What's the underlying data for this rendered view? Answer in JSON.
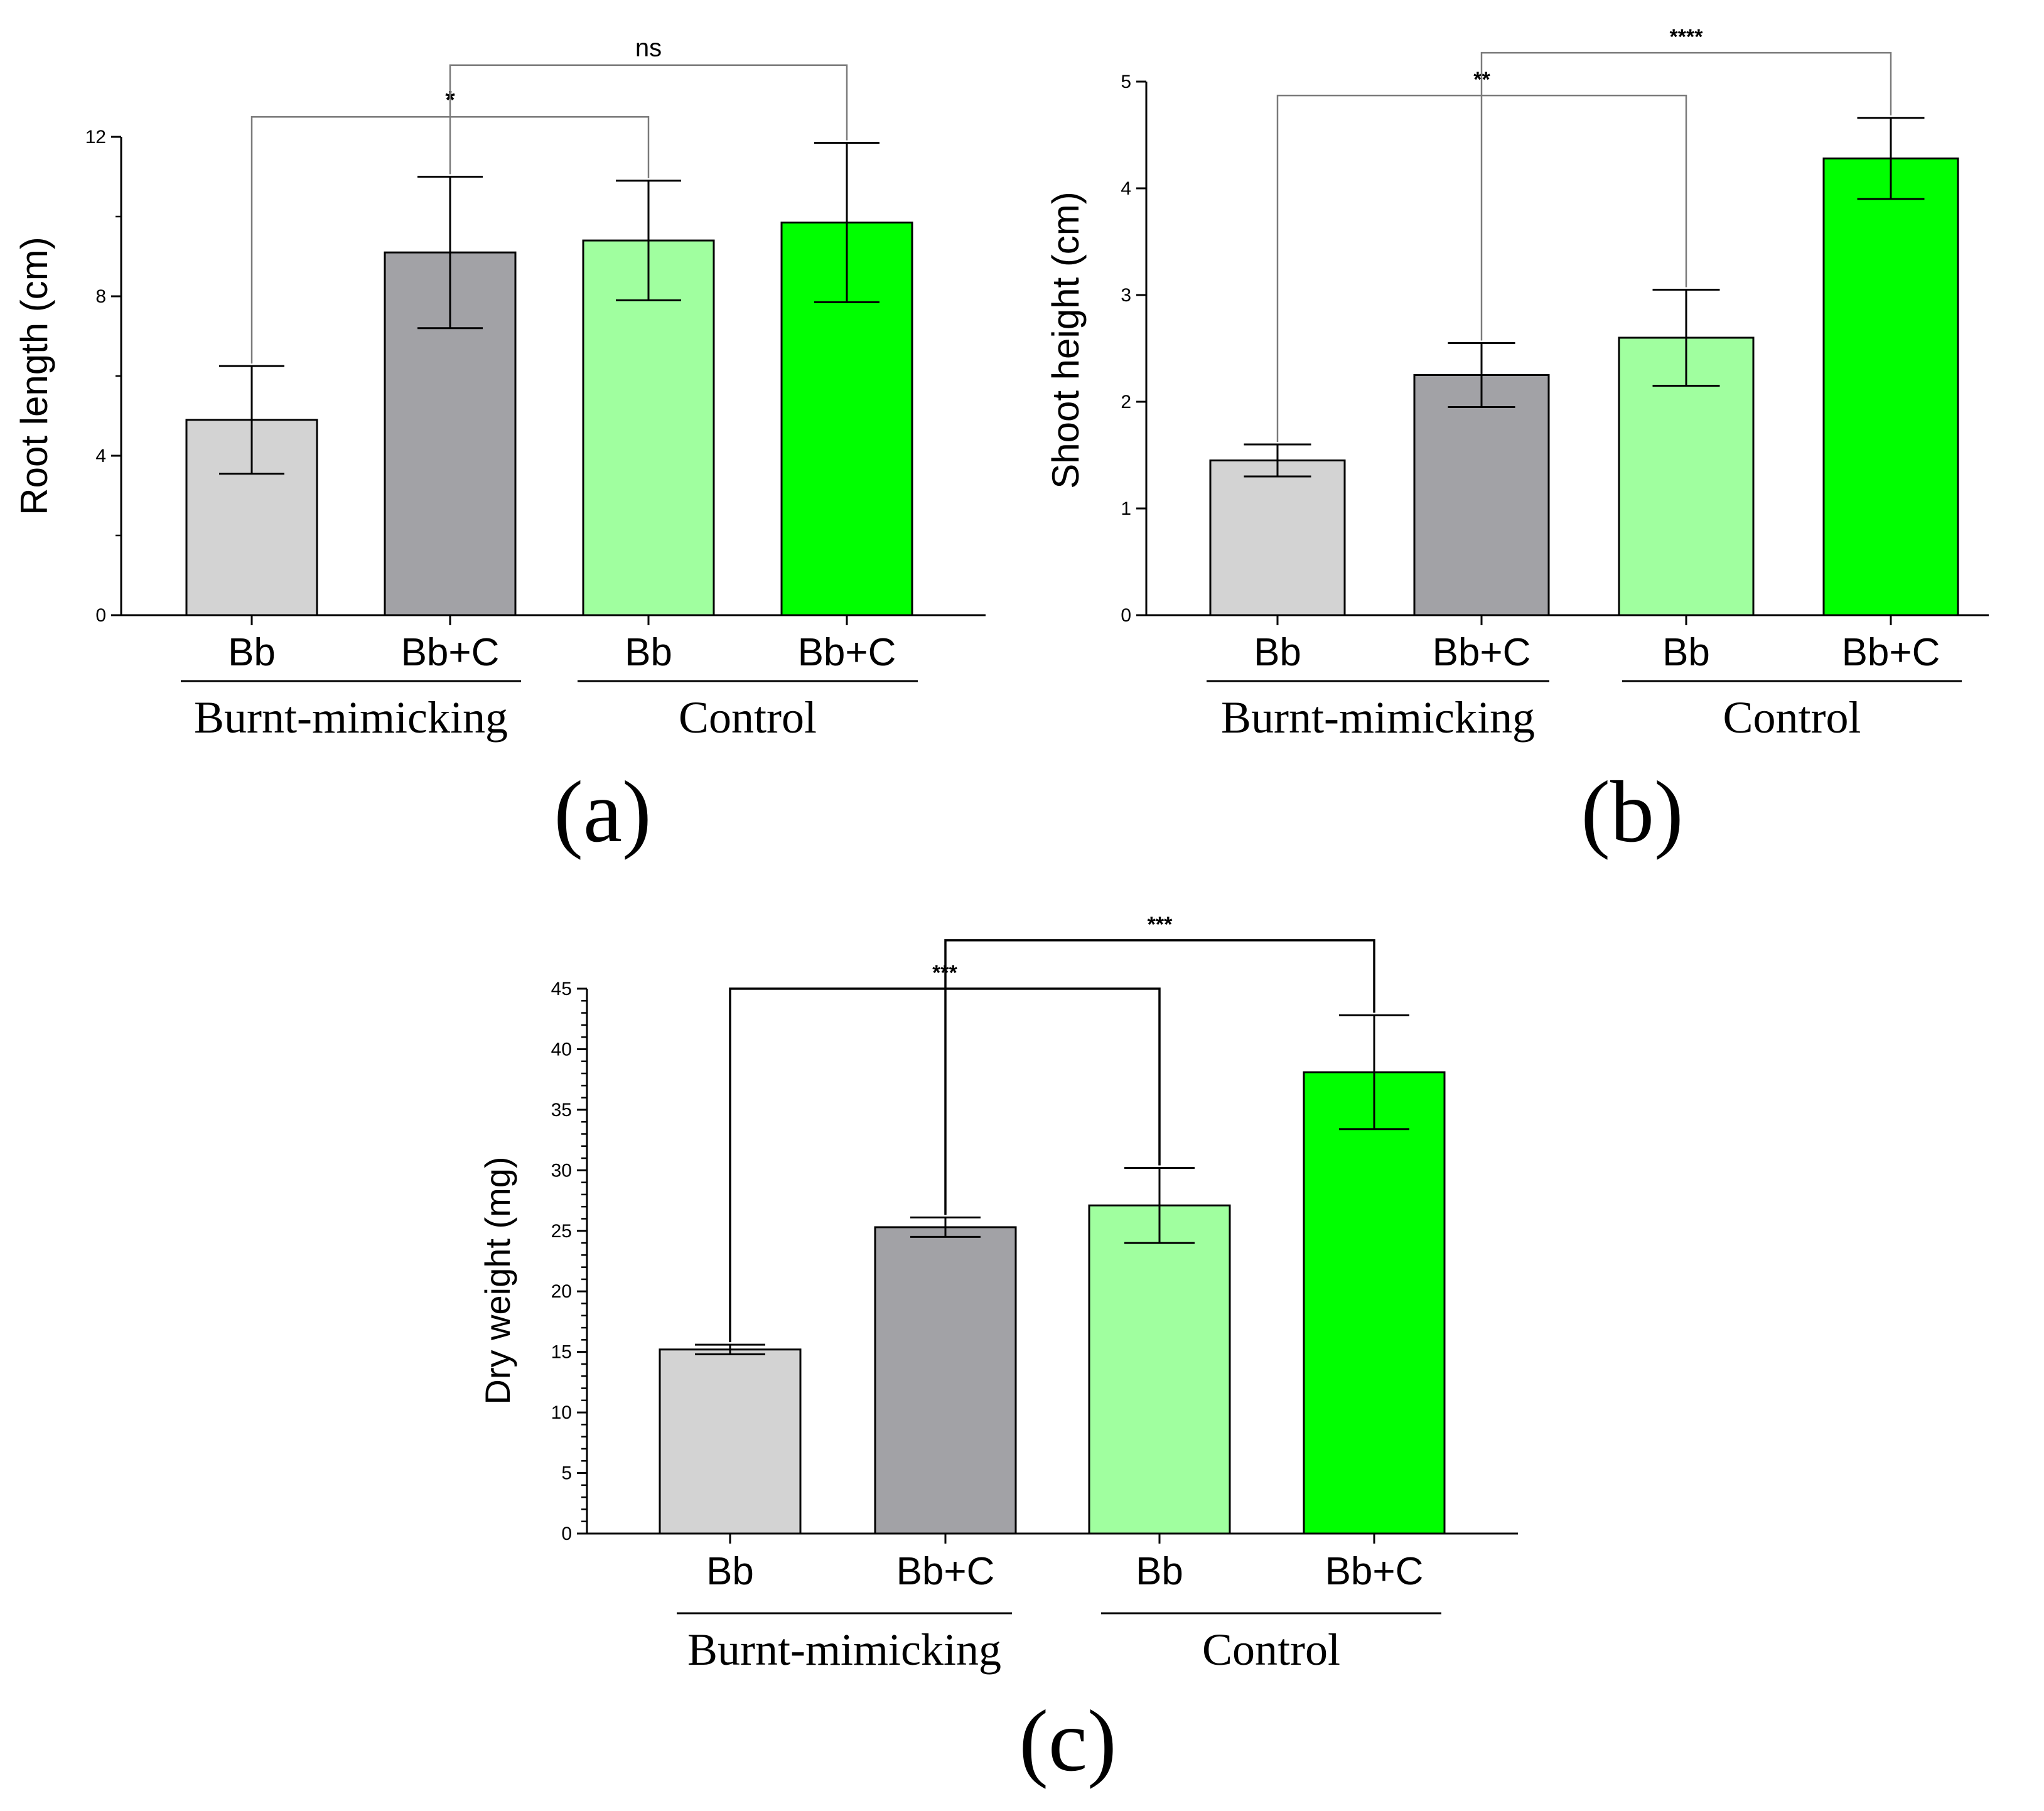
{
  "colors": {
    "bb_burnt": "#d3d3d3",
    "bbc_burnt": "#a2a2a6",
    "bb_control": "#a0ff9f",
    "bbc_control": "#00ff00",
    "axis": "#000000",
    "bracket_light": "#7a7a7a",
    "bracket_dark": "#000000"
  },
  "chart_data": [
    {
      "type": "bar",
      "panel_label": "(a)",
      "ylabel": "Root length (cm)",
      "ylim": [
        0,
        12
      ],
      "yticks": [
        "0",
        "4",
        "8",
        "12"
      ],
      "ytick_values": [
        0,
        4,
        8,
        12
      ],
      "minor_ticks": [
        2,
        6,
        10
      ],
      "categories": [
        "Bb",
        "Bb+C",
        "Bb",
        "Bb+C"
      ],
      "groups": [
        {
          "label": "Burnt-mimicking",
          "span": [
            0,
            1
          ]
        },
        {
          "label": "Control",
          "span": [
            2,
            3
          ]
        }
      ],
      "values": [
        4.9,
        9.1,
        9.4,
        9.85
      ],
      "errors": [
        1.35,
        1.9,
        1.5,
        2.0
      ],
      "bar_colors": [
        "bb_burnt",
        "bbc_burnt",
        "bb_control",
        "bbc_control"
      ],
      "brackets": [
        {
          "from": 0,
          "to": 2,
          "label": "*",
          "level": 12.5,
          "style": "light"
        },
        {
          "from": 1,
          "to": 3,
          "label": "ns",
          "level": 13.8,
          "style": "light"
        }
      ]
    },
    {
      "type": "bar",
      "panel_label": "(b)",
      "ylabel": "Shoot height (cm)",
      "ylim": [
        0,
        5
      ],
      "yticks": [
        "0",
        "1",
        "2",
        "3",
        "4",
        "5"
      ],
      "ytick_values": [
        0,
        1,
        2,
        3,
        4,
        5
      ],
      "minor_ticks": [],
      "categories": [
        "Bb",
        "Bb+C",
        "Bb",
        "Bb+C"
      ],
      "groups": [
        {
          "label": "Burnt-mimicking",
          "span": [
            0,
            1
          ]
        },
        {
          "label": "Control",
          "span": [
            2,
            3
          ]
        }
      ],
      "values": [
        1.45,
        2.25,
        2.6,
        4.28
      ],
      "errors": [
        0.15,
        0.3,
        0.45,
        0.38
      ],
      "bar_colors": [
        "bb_burnt",
        "bbc_burnt",
        "bb_control",
        "bbc_control"
      ],
      "brackets": [
        {
          "from": 0,
          "to": 2,
          "label": "**",
          "level": 4.87,
          "style": "light"
        },
        {
          "from": 1,
          "to": 3,
          "label": "****",
          "level": 5.27,
          "style": "light"
        }
      ]
    },
    {
      "type": "bar",
      "panel_label": "(c)",
      "ylabel": "Dry weight (mg)",
      "ylim": [
        0,
        45
      ],
      "yticks": [
        "0",
        "5",
        "10",
        "15",
        "20",
        "25",
        "30",
        "35",
        "40",
        "45"
      ],
      "ytick_values": [
        0,
        5,
        10,
        15,
        20,
        25,
        30,
        35,
        40,
        45
      ],
      "minor_ticks": [
        1,
        2,
        3,
        4,
        6,
        7,
        8,
        9,
        11,
        12,
        13,
        14,
        16,
        17,
        18,
        19,
        21,
        22,
        23,
        24,
        26,
        27,
        28,
        29,
        31,
        32,
        33,
        34,
        36,
        37,
        38,
        39,
        41,
        42,
        43,
        44
      ],
      "categories": [
        "Bb",
        "Bb+C",
        "Bb",
        "Bb+C"
      ],
      "groups": [
        {
          "label": "Burnt-mimicking",
          "span": [
            0,
            1
          ]
        },
        {
          "label": "Control",
          "span": [
            2,
            3
          ]
        }
      ],
      "values": [
        15.2,
        25.3,
        27.1,
        38.1
      ],
      "errors": [
        0.4,
        0.8,
        3.1,
        4.7
      ],
      "bar_colors": [
        "bb_burnt",
        "bbc_burnt",
        "bb_control",
        "bbc_control"
      ],
      "brackets": [
        {
          "from": 0,
          "to": 2,
          "label": "***",
          "level": 45.0,
          "style": "dark"
        },
        {
          "from": 1,
          "to": 3,
          "label": "***",
          "level": 49.0,
          "style": "dark"
        }
      ]
    }
  ]
}
